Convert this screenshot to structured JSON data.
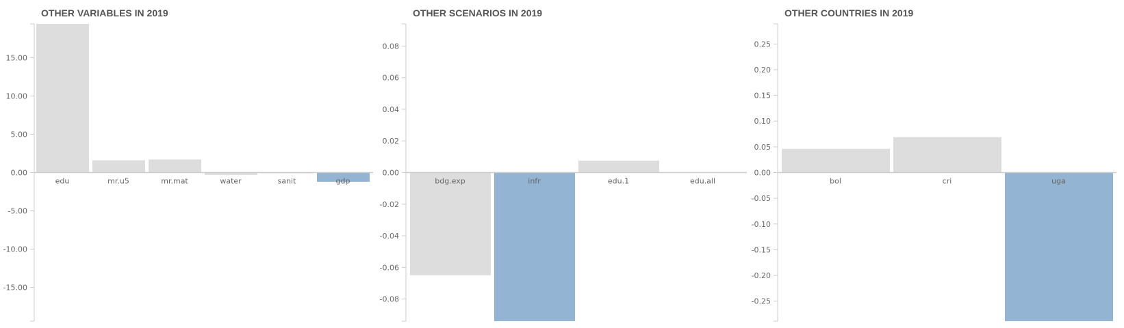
{
  "colors": {
    "bar_default": "#dddddd",
    "bar_highlight": "#93b4d2",
    "axis": "#cccccc",
    "text": "#666666",
    "title": "#555555"
  },
  "chart_data": [
    {
      "type": "bar",
      "title": "OTHER VARIABLES IN 2019",
      "categories": [
        "edu",
        "mr.u5",
        "mr.mat",
        "water",
        "sanit",
        "gdp"
      ],
      "values": [
        19.4,
        1.6,
        1.7,
        -0.3,
        -0.1,
        -1.2
      ],
      "highlight": "gdp",
      "ylim": [
        -19.4,
        19.4
      ],
      "yticks": [
        15,
        10,
        5,
        0,
        -5,
        -10,
        -15
      ],
      "ytick_labels": [
        "15.00",
        "10.00",
        "5.00",
        "0.00",
        "-5.00",
        "-10.00",
        "-15.00"
      ],
      "xlabel": "",
      "ylabel": ""
    },
    {
      "type": "bar",
      "title": "OTHER SCENARIOS IN 2019",
      "categories": [
        "bdg.exp",
        "infr",
        "edu.1",
        "edu.all"
      ],
      "values": [
        -0.065,
        -0.094,
        0.0075,
        0
      ],
      "highlight": "infr",
      "ylim": [
        -0.094,
        0.094
      ],
      "yticks": [
        0.08,
        0.06,
        0.04,
        0.02,
        0,
        -0.02,
        -0.04,
        -0.06,
        -0.08
      ],
      "ytick_labels": [
        "0.08",
        "0.06",
        "0.04",
        "0.02",
        "0.00",
        "-0.02",
        "-0.04",
        "-0.06",
        "-0.08"
      ],
      "xlabel": "",
      "ylabel": ""
    },
    {
      "type": "bar",
      "title": "OTHER COUNTRIES IN 2019",
      "categories": [
        "bol",
        "cri",
        "uga"
      ],
      "values": [
        0.046,
        0.069,
        -0.289
      ],
      "highlight": "uga",
      "ylim": [
        -0.289,
        0.289
      ],
      "yticks": [
        0.25,
        0.2,
        0.15,
        0.1,
        0.05,
        0,
        -0.05,
        -0.1,
        -0.15,
        -0.2,
        -0.25
      ],
      "ytick_labels": [
        "0.25",
        "0.20",
        "0.15",
        "0.10",
        "0.05",
        "0.00",
        "-0.05",
        "-0.10",
        "-0.15",
        "-0.20",
        "-0.25"
      ],
      "xlabel": "",
      "ylabel": ""
    }
  ]
}
